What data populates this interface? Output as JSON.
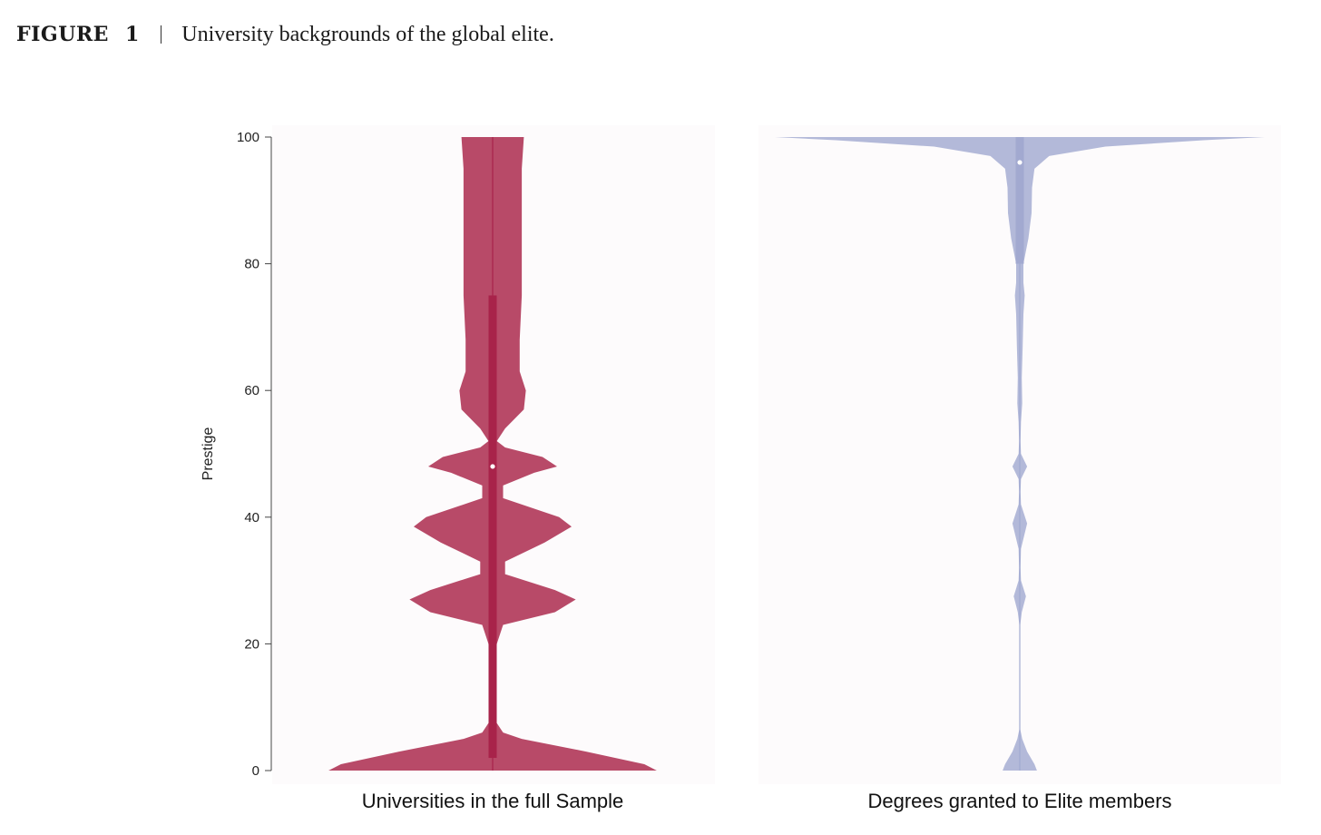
{
  "figure": {
    "label": "FIGURE",
    "number": "1",
    "title": "University backgrounds of the global elite."
  },
  "chart_data": {
    "type": "violin",
    "ylabel": "Prestige",
    "ylim": [
      0,
      100
    ],
    "yticks": [
      0,
      20,
      40,
      60,
      80,
      100
    ],
    "grid": false,
    "violins": [
      {
        "category": "Universities in the full Sample",
        "color": "#b84a68",
        "box_color": "#a8234a",
        "median": 48,
        "q1": 2,
        "q3": 75,
        "whisker": [
          0,
          100
        ],
        "profile": [
          [
            0,
            0.79
          ],
          [
            1,
            0.73
          ],
          [
            3,
            0.45
          ],
          [
            5,
            0.14
          ],
          [
            6,
            0.05
          ],
          [
            8,
            0.01
          ],
          [
            15,
            0.01
          ],
          [
            20,
            0.02
          ],
          [
            23,
            0.05
          ],
          [
            25,
            0.3
          ],
          [
            27,
            0.4
          ],
          [
            28.5,
            0.3
          ],
          [
            31,
            0.06
          ],
          [
            33,
            0.06
          ],
          [
            36,
            0.25
          ],
          [
            38.5,
            0.38
          ],
          [
            40,
            0.32
          ],
          [
            43,
            0.05
          ],
          [
            45,
            0.05
          ],
          [
            47,
            0.2
          ],
          [
            48,
            0.31
          ],
          [
            49.5,
            0.24
          ],
          [
            51,
            0.06
          ],
          [
            52,
            0.02
          ],
          [
            54,
            0.06
          ],
          [
            57,
            0.15
          ],
          [
            60,
            0.16
          ],
          [
            63,
            0.13
          ],
          [
            68,
            0.13
          ],
          [
            75,
            0.14
          ],
          [
            85,
            0.14
          ],
          [
            95,
            0.14
          ],
          [
            100,
            0.15
          ]
        ]
      },
      {
        "category": "Degrees granted to Elite members",
        "color": "#b3b9d9",
        "box_color": "#a2a9d0",
        "median": 96,
        "q1": 80,
        "q3": 100,
        "whisker": [
          0,
          100
        ],
        "profile": [
          [
            0,
            0.07
          ],
          [
            1,
            0.06
          ],
          [
            3,
            0.03
          ],
          [
            5,
            0.01
          ],
          [
            6.5,
            0.002
          ],
          [
            23,
            0.002
          ],
          [
            25,
            0.008
          ],
          [
            27.5,
            0.025
          ],
          [
            30,
            0.005
          ],
          [
            32,
            0.003
          ],
          [
            35,
            0.005
          ],
          [
            39,
            0.03
          ],
          [
            42,
            0.005
          ],
          [
            44,
            0.003
          ],
          [
            46,
            0.005
          ],
          [
            48,
            0.03
          ],
          [
            50,
            0.005
          ],
          [
            52,
            0.003
          ],
          [
            55,
            0.005
          ],
          [
            58,
            0.01
          ],
          [
            62,
            0.008
          ],
          [
            67,
            0.012
          ],
          [
            72,
            0.015
          ],
          [
            75,
            0.02
          ],
          [
            77,
            0.015
          ],
          [
            80,
            0.015
          ],
          [
            84,
            0.035
          ],
          [
            88,
            0.048
          ],
          [
            92,
            0.05
          ],
          [
            95,
            0.06
          ],
          [
            97,
            0.12
          ],
          [
            98.5,
            0.35
          ],
          [
            99.5,
            0.75
          ],
          [
            100,
            1.0
          ]
        ]
      }
    ]
  }
}
